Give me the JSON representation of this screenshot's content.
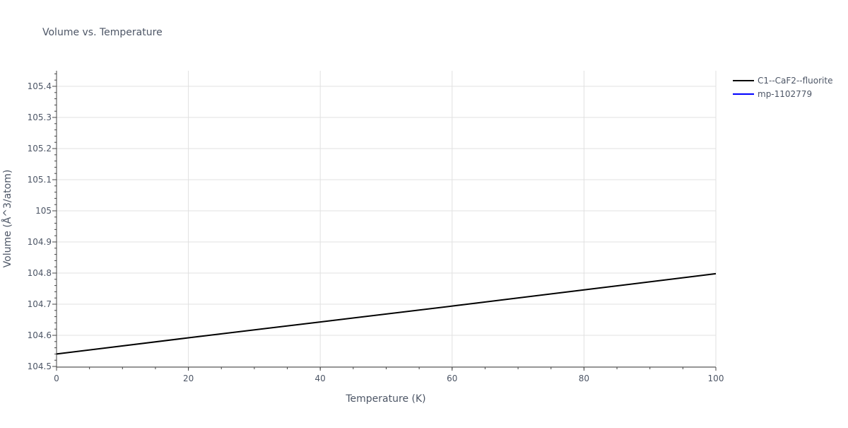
{
  "chart_data": {
    "type": "line",
    "title": "Volume vs. Temperature",
    "xlabel": "Temperature (K)",
    "ylabel": "Volume (Å^3/atom)",
    "xlim": [
      0,
      100
    ],
    "ylim": [
      104.5,
      105.45
    ],
    "x_ticks": [
      0,
      20,
      40,
      60,
      80,
      100
    ],
    "y_ticks": [
      104.5,
      104.6,
      104.7,
      104.8,
      104.9,
      105,
      105.1,
      105.2,
      105.3,
      105.4
    ],
    "y_tick_labels": [
      "104.5",
      "104.6",
      "104.7",
      "104.8",
      "104.9",
      "105",
      "105.1",
      "105.2",
      "105.3",
      "105.4"
    ],
    "grid": true,
    "legend_position": "top-right",
    "series": [
      {
        "name": "C1--CaF2--fluorite",
        "color": "#000000",
        "x": [
          0,
          20,
          40,
          60,
          80,
          100
        ],
        "y": [
          104.54,
          104.592,
          104.643,
          104.694,
          104.746,
          104.798
        ]
      },
      {
        "name": "mp-1102779",
        "color": "#0000ff",
        "x": [],
        "y": []
      }
    ]
  }
}
